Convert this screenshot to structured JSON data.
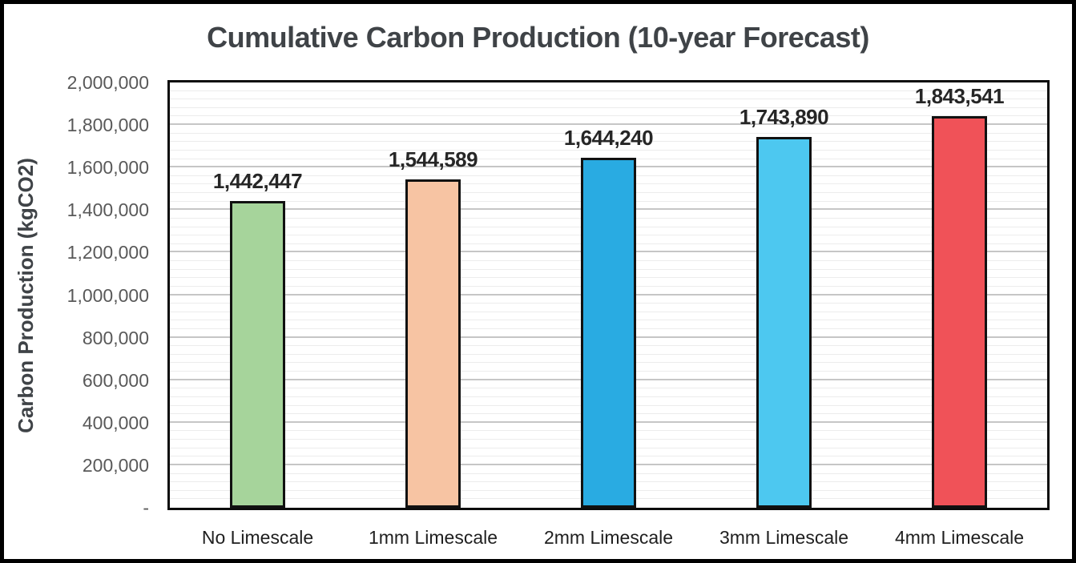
{
  "chart_data": {
    "type": "bar",
    "title": "Cumulative Carbon Production (10-year Forecast)",
    "xlabel": "",
    "ylabel": "Carbon Production (kgCO2)",
    "categories": [
      "No Limescale",
      "1mm Limescale",
      "2mm Limescale",
      "3mm Limescale",
      "4mm Limescale"
    ],
    "values": [
      1442447,
      1544589,
      1644240,
      1743890,
      1843541
    ],
    "bar_labels": [
      "1,442,447",
      "1,544,589",
      "1,644,240",
      "1,743,890",
      "1,843,541"
    ],
    "bar_colors": [
      "#a6d49b",
      "#f7c4a3",
      "#29abe2",
      "#4dc8f0",
      "#f05258"
    ],
    "ylim": [
      0,
      2000000
    ],
    "ytick_step": 200000,
    "yminor_step": 40000,
    "ytick_labels_top_to_bottom": [
      "2,000,000",
      "1,800,000",
      "1,600,000",
      "1,400,000",
      "1,200,000",
      "1,000,000",
      "800,000",
      "600,000",
      "400,000",
      "200,000",
      "-"
    ],
    "legend": "none",
    "grid": "horizontal major and minor gridlines"
  },
  "colors": {
    "title_text": "#3f4347",
    "axis_tick_text": "#595959",
    "category_text": "#1f1f1f",
    "value_label_text": "#262626",
    "bar_border": "#111111",
    "plot_border": "#0d0d0d",
    "major_grid": "#c6c6c6",
    "minor_grid": "#ececec",
    "frame": "#000000",
    "background": "#ffffff"
  }
}
